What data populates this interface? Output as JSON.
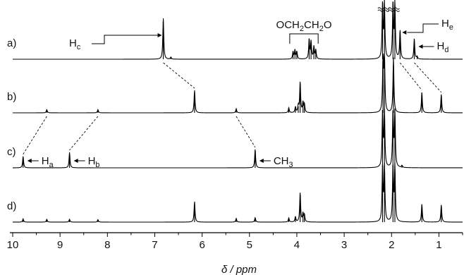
{
  "chart_data": {
    "type": "line",
    "xlabel": "δ / ppm",
    "xlim": [
      10,
      0.5
    ],
    "x_reversed": true,
    "x_ticks": [
      10,
      9,
      8,
      7,
      6,
      5,
      4,
      3,
      2,
      1
    ],
    "grid": false,
    "series": [
      {
        "name": "a)",
        "peaks": [
          {
            "x": 6.82,
            "h": 1.0
          },
          {
            "x": 6.66,
            "h": 0.05
          },
          {
            "x": 4.08,
            "h": 0.18
          },
          {
            "x": 4.04,
            "h": 0.22
          },
          {
            "x": 4.0,
            "h": 0.18
          },
          {
            "x": 3.74,
            "h": 0.48
          },
          {
            "x": 3.7,
            "h": 0.42
          },
          {
            "x": 3.64,
            "h": 0.3
          },
          {
            "x": 3.6,
            "h": 0.22
          },
          {
            "x": 2.19,
            "h": 1.35
          },
          {
            "x": 2.15,
            "h": 1.35
          },
          {
            "x": 1.97,
            "h": 1.35
          },
          {
            "x": 1.93,
            "h": 1.35
          },
          {
            "x": 1.82,
            "h": 0.7
          },
          {
            "x": 1.52,
            "h": 0.5
          },
          {
            "x": 1.46,
            "h": 0.06
          }
        ]
      },
      {
        "name": "b)",
        "peaks": [
          {
            "x": 9.28,
            "h": 0.08
          },
          {
            "x": 8.2,
            "h": 0.08
          },
          {
            "x": 6.16,
            "h": 0.55
          },
          {
            "x": 5.28,
            "h": 0.1
          },
          {
            "x": 4.17,
            "h": 0.12
          },
          {
            "x": 4.03,
            "h": 0.14
          },
          {
            "x": 3.97,
            "h": 0.16
          },
          {
            "x": 3.93,
            "h": 0.75
          },
          {
            "x": 3.87,
            "h": 0.24
          },
          {
            "x": 3.84,
            "h": 0.2
          },
          {
            "x": 2.18,
            "h": 1.35
          },
          {
            "x": 2.15,
            "h": 1.35
          },
          {
            "x": 1.96,
            "h": 1.35
          },
          {
            "x": 1.36,
            "h": 0.5
          },
          {
            "x": 0.95,
            "h": 0.45
          }
        ]
      },
      {
        "name": "c)",
        "peaks": [
          {
            "x": 9.78,
            "h": 0.28
          },
          {
            "x": 8.8,
            "h": 0.38
          },
          {
            "x": 4.88,
            "h": 0.45
          },
          {
            "x": 2.19,
            "h": 1.35
          },
          {
            "x": 2.15,
            "h": 1.35
          },
          {
            "x": 1.97,
            "h": 1.35
          },
          {
            "x": 1.93,
            "h": 1.35
          },
          {
            "x": 1.78,
            "h": 0.05
          }
        ]
      },
      {
        "name": "d)",
        "peaks": [
          {
            "x": 9.78,
            "h": 0.08
          },
          {
            "x": 9.28,
            "h": 0.07
          },
          {
            "x": 8.8,
            "h": 0.07
          },
          {
            "x": 8.2,
            "h": 0.06
          },
          {
            "x": 6.16,
            "h": 0.5
          },
          {
            "x": 5.28,
            "h": 0.09
          },
          {
            "x": 4.88,
            "h": 0.11
          },
          {
            "x": 4.17,
            "h": 0.1
          },
          {
            "x": 4.03,
            "h": 0.13
          },
          {
            "x": 3.93,
            "h": 0.72
          },
          {
            "x": 3.87,
            "h": 0.2
          },
          {
            "x": 3.84,
            "h": 0.17
          },
          {
            "x": 2.19,
            "h": 1.35
          },
          {
            "x": 2.15,
            "h": 1.35
          },
          {
            "x": 1.97,
            "h": 1.35
          },
          {
            "x": 1.93,
            "h": 1.35
          },
          {
            "x": 1.36,
            "h": 0.44
          },
          {
            "x": 0.95,
            "h": 0.42
          }
        ]
      }
    ],
    "annotations": {
      "h_c": {
        "label": "H",
        "sub": "c",
        "at_ppm": 6.82,
        "series": 0
      },
      "och2": {
        "label": "OCH",
        "sub1": "2",
        "mid": "CH",
        "sub2": "2",
        "end": "O",
        "from_ppm": 4.15,
        "to_ppm": 3.55,
        "series": 0
      },
      "h_e": {
        "label": "H",
        "sub": "e",
        "at_ppm": 1.82,
        "series": 0
      },
      "h_d": {
        "label": "H",
        "sub": "d",
        "at_ppm": 1.52,
        "series": 0
      },
      "h_a": {
        "label": "H",
        "sub": "a",
        "at_ppm": 9.78,
        "series": 2
      },
      "h_b": {
        "label": "H",
        "sub": "b",
        "at_ppm": 8.8,
        "series": 2
      },
      "ch3": {
        "label": "CH",
        "sub": "3",
        "at_ppm": 4.88,
        "series": 2
      }
    },
    "correlations": [
      {
        "from_series": 0,
        "from_ppm": 6.82,
        "to_series": 1,
        "to_ppm": 6.16
      },
      {
        "from_series": 0,
        "from_ppm": 1.82,
        "to_series": 1,
        "to_ppm": 1.36
      },
      {
        "from_series": 0,
        "from_ppm": 1.52,
        "to_series": 1,
        "to_ppm": 0.95
      },
      {
        "from_series": 1,
        "from_ppm": 9.28,
        "to_series": 2,
        "to_ppm": 9.78
      },
      {
        "from_series": 1,
        "from_ppm": 8.2,
        "to_series": 2,
        "to_ppm": 8.8
      },
      {
        "from_series": 1,
        "from_ppm": 5.28,
        "to_series": 2,
        "to_ppm": 4.88
      }
    ],
    "break_marks_ppm": [
      2.17,
      1.95
    ]
  }
}
